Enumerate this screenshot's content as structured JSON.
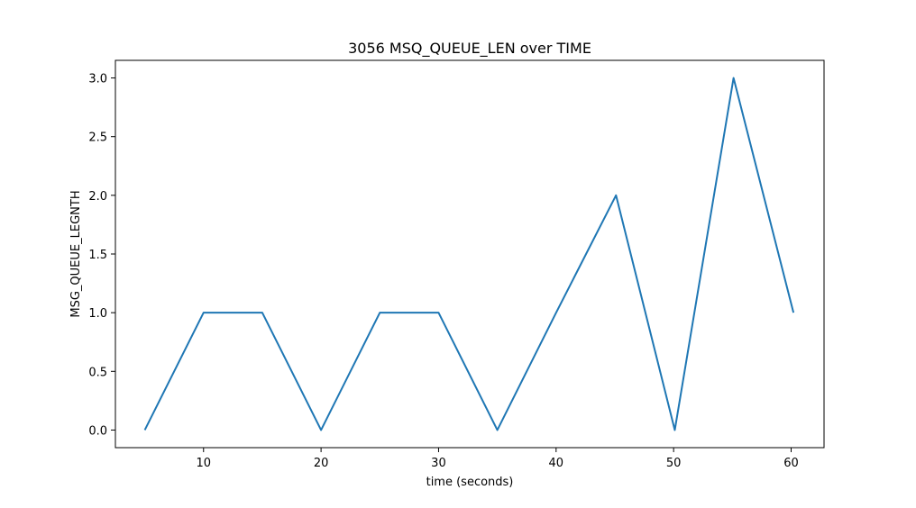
{
  "chart_data": {
    "type": "line",
    "title": "3056 MSQ_QUEUE_LEN over TIME",
    "xlabel": "time (seconds)",
    "ylabel": "MSG_QUEUE_LEGNTH",
    "xlim": [
      2.5,
      62.8
    ],
    "ylim": [
      -0.15,
      3.15
    ],
    "xticks": [
      10,
      20,
      30,
      40,
      50,
      60
    ],
    "xtick_labels": [
      "10",
      "20",
      "30",
      "40",
      "50",
      "60"
    ],
    "yticks": [
      0.0,
      0.5,
      1.0,
      1.5,
      2.0,
      2.5,
      3.0
    ],
    "ytick_labels": [
      "0.0",
      "0.5",
      "1.0",
      "1.5",
      "2.0",
      "2.5",
      "3.0"
    ],
    "grid": false,
    "series": [
      {
        "color": "#1f77b4",
        "x": [
          5.0,
          10.0,
          15.0,
          20.0,
          25.0,
          30.0,
          35.0,
          40.0,
          45.1,
          50.1,
          55.1,
          60.2
        ],
        "y": [
          0,
          1,
          1,
          0,
          1,
          1,
          0,
          1,
          2,
          0,
          3,
          1
        ]
      }
    ]
  }
}
